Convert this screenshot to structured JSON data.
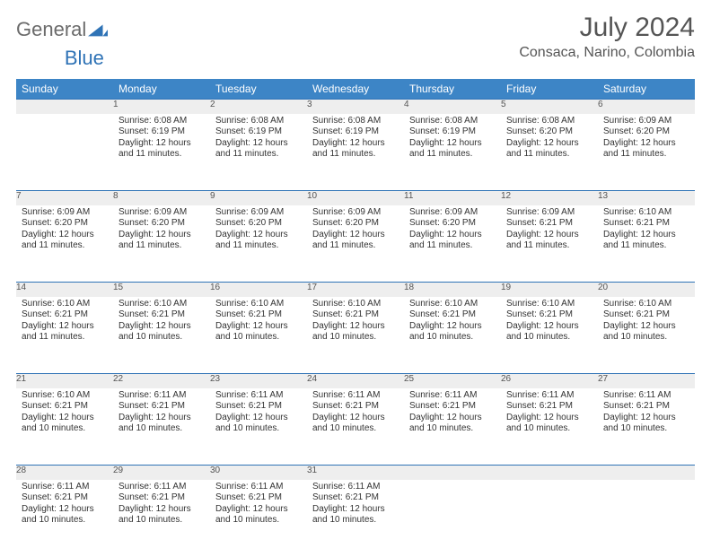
{
  "brand": {
    "part1": "General",
    "part2": "Blue"
  },
  "title": "July 2024",
  "location": "Consaca, Narino, Colombia",
  "colors": {
    "header_bg": "#3d85c6",
    "header_fg": "#ffffff",
    "daynum_bg": "#eeeeee",
    "rule": "#2f73b6",
    "text": "#333333",
    "title_fg": "#555555"
  },
  "weekdays": [
    "Sunday",
    "Monday",
    "Tuesday",
    "Wednesday",
    "Thursday",
    "Friday",
    "Saturday"
  ],
  "weeks": [
    [
      null,
      {
        "n": "1",
        "sr": "6:08 AM",
        "ss": "6:19 PM",
        "dl": "12 hours and 11 minutes."
      },
      {
        "n": "2",
        "sr": "6:08 AM",
        "ss": "6:19 PM",
        "dl": "12 hours and 11 minutes."
      },
      {
        "n": "3",
        "sr": "6:08 AM",
        "ss": "6:19 PM",
        "dl": "12 hours and 11 minutes."
      },
      {
        "n": "4",
        "sr": "6:08 AM",
        "ss": "6:19 PM",
        "dl": "12 hours and 11 minutes."
      },
      {
        "n": "5",
        "sr": "6:08 AM",
        "ss": "6:20 PM",
        "dl": "12 hours and 11 minutes."
      },
      {
        "n": "6",
        "sr": "6:09 AM",
        "ss": "6:20 PM",
        "dl": "12 hours and 11 minutes."
      }
    ],
    [
      {
        "n": "7",
        "sr": "6:09 AM",
        "ss": "6:20 PM",
        "dl": "12 hours and 11 minutes."
      },
      {
        "n": "8",
        "sr": "6:09 AM",
        "ss": "6:20 PM",
        "dl": "12 hours and 11 minutes."
      },
      {
        "n": "9",
        "sr": "6:09 AM",
        "ss": "6:20 PM",
        "dl": "12 hours and 11 minutes."
      },
      {
        "n": "10",
        "sr": "6:09 AM",
        "ss": "6:20 PM",
        "dl": "12 hours and 11 minutes."
      },
      {
        "n": "11",
        "sr": "6:09 AM",
        "ss": "6:20 PM",
        "dl": "12 hours and 11 minutes."
      },
      {
        "n": "12",
        "sr": "6:09 AM",
        "ss": "6:21 PM",
        "dl": "12 hours and 11 minutes."
      },
      {
        "n": "13",
        "sr": "6:10 AM",
        "ss": "6:21 PM",
        "dl": "12 hours and 11 minutes."
      }
    ],
    [
      {
        "n": "14",
        "sr": "6:10 AM",
        "ss": "6:21 PM",
        "dl": "12 hours and 11 minutes."
      },
      {
        "n": "15",
        "sr": "6:10 AM",
        "ss": "6:21 PM",
        "dl": "12 hours and 10 minutes."
      },
      {
        "n": "16",
        "sr": "6:10 AM",
        "ss": "6:21 PM",
        "dl": "12 hours and 10 minutes."
      },
      {
        "n": "17",
        "sr": "6:10 AM",
        "ss": "6:21 PM",
        "dl": "12 hours and 10 minutes."
      },
      {
        "n": "18",
        "sr": "6:10 AM",
        "ss": "6:21 PM",
        "dl": "12 hours and 10 minutes."
      },
      {
        "n": "19",
        "sr": "6:10 AM",
        "ss": "6:21 PM",
        "dl": "12 hours and 10 minutes."
      },
      {
        "n": "20",
        "sr": "6:10 AM",
        "ss": "6:21 PM",
        "dl": "12 hours and 10 minutes."
      }
    ],
    [
      {
        "n": "21",
        "sr": "6:10 AM",
        "ss": "6:21 PM",
        "dl": "12 hours and 10 minutes."
      },
      {
        "n": "22",
        "sr": "6:11 AM",
        "ss": "6:21 PM",
        "dl": "12 hours and 10 minutes."
      },
      {
        "n": "23",
        "sr": "6:11 AM",
        "ss": "6:21 PM",
        "dl": "12 hours and 10 minutes."
      },
      {
        "n": "24",
        "sr": "6:11 AM",
        "ss": "6:21 PM",
        "dl": "12 hours and 10 minutes."
      },
      {
        "n": "25",
        "sr": "6:11 AM",
        "ss": "6:21 PM",
        "dl": "12 hours and 10 minutes."
      },
      {
        "n": "26",
        "sr": "6:11 AM",
        "ss": "6:21 PM",
        "dl": "12 hours and 10 minutes."
      },
      {
        "n": "27",
        "sr": "6:11 AM",
        "ss": "6:21 PM",
        "dl": "12 hours and 10 minutes."
      }
    ],
    [
      {
        "n": "28",
        "sr": "6:11 AM",
        "ss": "6:21 PM",
        "dl": "12 hours and 10 minutes."
      },
      {
        "n": "29",
        "sr": "6:11 AM",
        "ss": "6:21 PM",
        "dl": "12 hours and 10 minutes."
      },
      {
        "n": "30",
        "sr": "6:11 AM",
        "ss": "6:21 PM",
        "dl": "12 hours and 10 minutes."
      },
      {
        "n": "31",
        "sr": "6:11 AM",
        "ss": "6:21 PM",
        "dl": "12 hours and 10 minutes."
      },
      null,
      null,
      null
    ]
  ],
  "labels": {
    "sunrise": "Sunrise:",
    "sunset": "Sunset:",
    "daylight": "Daylight:"
  }
}
